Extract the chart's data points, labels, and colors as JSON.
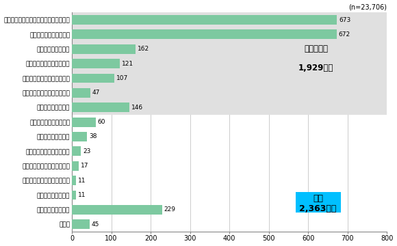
{
  "n_label": "(n=23,706)",
  "categories": [
    "国内の百貨店（通販、外商扱いも含む）",
    "国内の画庶・ギャラリー",
    "国内のアートフェア",
    "国内の美術品オークション",
    "国内のインターネットサイト",
    "国内のミュージアムショップ",
    "その他の国内事業者",
    "国外の画庶・ギャラリー",
    "国外のアートフェア",
    "国外の美術品オークション",
    "国外のインターネットサイト",
    "国外のミュージアムショップ",
    "その他の国外事業者",
    "作家からの直接購入",
    "その他"
  ],
  "values": [
    673,
    672,
    162,
    121,
    107,
    47,
    146,
    60,
    38,
    23,
    17,
    11,
    11,
    229,
    45
  ],
  "bar_color": "#7dc9a0",
  "domestic_bg_color": "#e0e0e0",
  "domestic_label_line1": "国内事業者",
  "domestic_label_line2": "1,929億円",
  "total_label_line1": "合計",
  "total_label_line2": "2,363億円",
  "total_bg_color": "#00bfff",
  "xlim": [
    0,
    800
  ],
  "xticks": [
    0,
    100,
    200,
    300,
    400,
    500,
    600,
    700,
    800
  ],
  "domestic_count": 7,
  "bar_height": 0.65,
  "figure_bg": "#ffffff",
  "axes_bg": "#ffffff",
  "grid_color": "#cccccc",
  "value_fontsize": 6.5,
  "label_fontsize": 6.5,
  "tick_fontsize": 7.0
}
